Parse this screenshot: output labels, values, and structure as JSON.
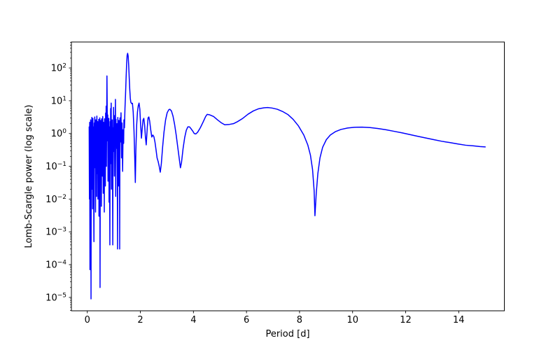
{
  "figure": {
    "background": "#ffffff",
    "spine_color": "#000000",
    "tick_color": "#000000",
    "text_color": "#000000"
  },
  "chart_data": {
    "type": "line",
    "title": "",
    "xlabel": "Period [d]",
    "ylabel": "Lomb-Scargle power (log scale)",
    "x_scale": "linear",
    "y_scale": "log",
    "xlim": [
      -0.6,
      15.72
    ],
    "ylim": [
      3.9e-06,
      620
    ],
    "x_ticks": [
      0,
      2,
      4,
      6,
      8,
      10,
      12,
      14
    ],
    "y_tick_exponents": [
      2,
      1,
      0,
      -1,
      -2,
      -3,
      -4,
      -5
    ],
    "grid": false,
    "legend": "none",
    "line_color": "#0000ff",
    "line_width": 1.5,
    "series": [
      {
        "name": "Lomb-Scargle power",
        "points": [
          [
            0.07,
            1.6
          ],
          [
            0.08,
            0.01
          ],
          [
            0.09,
            2.2
          ],
          [
            0.1,
            7e-05
          ],
          [
            0.11,
            1.8
          ],
          [
            0.12,
            0.06
          ],
          [
            0.125,
            2.6
          ],
          [
            0.13,
            0.4
          ],
          [
            0.14,
            9e-06
          ],
          [
            0.15,
            2.4
          ],
          [
            0.16,
            0.12
          ],
          [
            0.17,
            3.1
          ],
          [
            0.18,
            0.02
          ],
          [
            0.19,
            1.4
          ],
          [
            0.2,
            0.005
          ],
          [
            0.21,
            2.9
          ],
          [
            0.22,
            0.5
          ],
          [
            0.23,
            1.6
          ],
          [
            0.24,
            0.015
          ],
          [
            0.25,
            0.0005
          ],
          [
            0.26,
            2.1
          ],
          [
            0.27,
            0.09
          ],
          [
            0.28,
            3.2
          ],
          [
            0.29,
            0.7
          ],
          [
            0.3,
            1.1
          ],
          [
            0.31,
            0.004
          ],
          [
            0.32,
            2.6
          ],
          [
            0.33,
            0.25
          ],
          [
            0.34,
            1.5
          ],
          [
            0.35,
            0.012
          ],
          [
            0.36,
            3.4
          ],
          [
            0.37,
            0.8
          ],
          [
            0.38,
            0.06
          ],
          [
            0.39,
            2.3
          ],
          [
            0.4,
            0.01
          ],
          [
            0.41,
            1.9
          ],
          [
            0.42,
            0.35
          ],
          [
            0.43,
            2.7
          ],
          [
            0.44,
            0.003
          ],
          [
            0.45,
            1.2
          ],
          [
            0.46,
            0.12
          ],
          [
            0.47,
            3.0
          ],
          [
            0.48,
            2e-05
          ],
          [
            0.49,
            1.0
          ],
          [
            0.5,
            2.5
          ],
          [
            0.51,
            0.07
          ],
          [
            0.52,
            1.7
          ],
          [
            0.53,
            0.006
          ],
          [
            0.54,
            2.8
          ],
          [
            0.55,
            0.3
          ],
          [
            0.56,
            1.3
          ],
          [
            0.57,
            0.05
          ],
          [
            0.58,
            3.3
          ],
          [
            0.59,
            0.9
          ],
          [
            0.6,
            0.015
          ],
          [
            0.61,
            2.2
          ],
          [
            0.62,
            0.18
          ],
          [
            0.63,
            1.8
          ],
          [
            0.64,
            0.004
          ],
          [
            0.65,
            2.8
          ],
          [
            0.66,
            0.4
          ],
          [
            0.67,
            1.4
          ],
          [
            0.68,
            0.025
          ],
          [
            0.69,
            4.2
          ],
          [
            0.7,
            0.7
          ],
          [
            0.71,
            6.8
          ],
          [
            0.72,
            0.1
          ],
          [
            0.73,
            2.4
          ],
          [
            0.74,
            57
          ],
          [
            0.76,
            0.6
          ],
          [
            0.77,
            3.7
          ],
          [
            0.78,
            0.035
          ],
          [
            0.79,
            2.0
          ],
          [
            0.8,
            0.22
          ],
          [
            0.81,
            2.9
          ],
          [
            0.82,
            0.008
          ],
          [
            0.83,
            1.6
          ],
          [
            0.84,
            0.06
          ],
          [
            0.85,
            0.0004
          ],
          [
            0.86,
            2.3
          ],
          [
            0.87,
            0.45
          ],
          [
            0.88,
            5.8
          ],
          [
            0.89,
            0.12
          ],
          [
            0.9,
            8.5
          ],
          [
            0.91,
            0.02
          ],
          [
            0.92,
            1.9
          ],
          [
            0.93,
            0.65
          ],
          [
            0.94,
            2.6
          ],
          [
            0.95,
            0.09
          ],
          [
            0.96,
            0.0004
          ],
          [
            0.97,
            1.5
          ],
          [
            0.98,
            0.28
          ],
          [
            0.99,
            6.3
          ],
          [
            1.0,
            0.55
          ],
          [
            1.01,
            2.1
          ],
          [
            1.02,
            0.05
          ],
          [
            1.03,
            3.5
          ],
          [
            1.04,
            1.0
          ],
          [
            1.05,
            1.7
          ],
          [
            1.06,
            11
          ],
          [
            1.07,
            0.012
          ],
          [
            1.08,
            2.7
          ],
          [
            1.09,
            0.35
          ],
          [
            1.1,
            1.5
          ],
          [
            1.11,
            0.75
          ],
          [
            1.12,
            2.0
          ],
          [
            1.13,
            0.07
          ],
          [
            1.14,
            0.0003
          ],
          [
            1.15,
            3.1
          ],
          [
            1.16,
            0.45
          ],
          [
            1.17,
            1.4
          ],
          [
            1.18,
            0.025
          ],
          [
            1.19,
            2.5
          ],
          [
            1.2,
            0.13
          ],
          [
            1.21,
            1.9
          ],
          [
            1.22,
            0.0003
          ],
          [
            1.23,
            3.0
          ],
          [
            1.25,
            0.55
          ],
          [
            1.27,
            4.3
          ],
          [
            1.29,
            0.18
          ],
          [
            1.31,
            2.1
          ],
          [
            1.33,
            0.07
          ],
          [
            1.35,
            1.3
          ],
          [
            1.37,
            0.5
          ],
          [
            1.38,
            2.6
          ],
          [
            1.4,
            1.5
          ],
          [
            1.42,
            6
          ],
          [
            1.44,
            15
          ],
          [
            1.46,
            45
          ],
          [
            1.48,
            120
          ],
          [
            1.5,
            240
          ],
          [
            1.52,
            280
          ],
          [
            1.54,
            230
          ],
          [
            1.56,
            120
          ],
          [
            1.58,
            50
          ],
          [
            1.6,
            22
          ],
          [
            1.62,
            12
          ],
          [
            1.64,
            9
          ],
          [
            1.67,
            8.2
          ],
          [
            1.7,
            8.4
          ],
          [
            1.73,
            4.5
          ],
          [
            1.76,
            1.2
          ],
          [
            1.79,
            0.15
          ],
          [
            1.81,
            0.032
          ],
          [
            1.83,
            0.3
          ],
          [
            1.86,
            1.8
          ],
          [
            1.89,
            4.5
          ],
          [
            1.92,
            7.0
          ],
          [
            1.95,
            8.5
          ],
          [
            1.98,
            5.5
          ],
          [
            2.01,
            1.8
          ],
          [
            2.04,
            0.72
          ],
          [
            2.07,
            1.4
          ],
          [
            2.1,
            2.6
          ],
          [
            2.13,
            2.9
          ],
          [
            2.16,
            1.8
          ],
          [
            2.19,
            0.8
          ],
          [
            2.22,
            0.45
          ],
          [
            2.26,
            1.5
          ],
          [
            2.29,
            3.0
          ],
          [
            2.32,
            3.2
          ],
          [
            2.35,
            2.4
          ],
          [
            2.39,
            1.3
          ],
          [
            2.43,
            0.78
          ],
          [
            2.47,
            0.9
          ],
          [
            2.51,
            0.8
          ],
          [
            2.55,
            0.55
          ],
          [
            2.59,
            0.32
          ],
          [
            2.63,
            0.18
          ],
          [
            2.67,
            0.14
          ],
          [
            2.71,
            0.1
          ],
          [
            2.75,
            0.066
          ],
          [
            2.79,
            0.12
          ],
          [
            2.84,
            0.4
          ],
          [
            2.89,
            1.1
          ],
          [
            2.95,
            2.6
          ],
          [
            3.01,
            4.3
          ],
          [
            3.07,
            5.3
          ],
          [
            3.11,
            5.5
          ],
          [
            3.17,
            4.9
          ],
          [
            3.23,
            3.4
          ],
          [
            3.29,
            1.9
          ],
          [
            3.35,
            0.9
          ],
          [
            3.41,
            0.38
          ],
          [
            3.47,
            0.16
          ],
          [
            3.51,
            0.09
          ],
          [
            3.55,
            0.13
          ],
          [
            3.61,
            0.35
          ],
          [
            3.67,
            0.75
          ],
          [
            3.73,
            1.25
          ],
          [
            3.79,
            1.6
          ],
          [
            3.85,
            1.6
          ],
          [
            3.91,
            1.4
          ],
          [
            3.97,
            1.2
          ],
          [
            4.03,
            1.0
          ],
          [
            4.09,
            0.97
          ],
          [
            4.16,
            1.1
          ],
          [
            4.26,
            1.5
          ],
          [
            4.36,
            2.2
          ],
          [
            4.46,
            3.3
          ],
          [
            4.52,
            3.85
          ],
          [
            4.62,
            3.7
          ],
          [
            4.76,
            3.3
          ],
          [
            4.91,
            2.6
          ],
          [
            5.06,
            2.1
          ],
          [
            5.18,
            1.85
          ],
          [
            5.36,
            1.9
          ],
          [
            5.51,
            2.0
          ],
          [
            5.66,
            2.3
          ],
          [
            5.86,
            2.9
          ],
          [
            6.06,
            3.9
          ],
          [
            6.26,
            4.9
          ],
          [
            6.46,
            5.7
          ],
          [
            6.66,
            6.1
          ],
          [
            6.8,
            6.2
          ],
          [
            6.96,
            6.0
          ],
          [
            7.16,
            5.5
          ],
          [
            7.36,
            4.7
          ],
          [
            7.56,
            3.8
          ],
          [
            7.76,
            2.7
          ],
          [
            7.96,
            1.7
          ],
          [
            8.16,
            0.9
          ],
          [
            8.31,
            0.45
          ],
          [
            8.41,
            0.22
          ],
          [
            8.49,
            0.08
          ],
          [
            8.55,
            0.018
          ],
          [
            8.58,
            0.0031
          ],
          [
            8.63,
            0.015
          ],
          [
            8.69,
            0.06
          ],
          [
            8.77,
            0.18
          ],
          [
            8.87,
            0.38
          ],
          [
            9.01,
            0.65
          ],
          [
            9.16,
            0.9
          ],
          [
            9.36,
            1.15
          ],
          [
            9.56,
            1.33
          ],
          [
            9.81,
            1.47
          ],
          [
            10.06,
            1.55
          ],
          [
            10.36,
            1.57
          ],
          [
            10.66,
            1.52
          ],
          [
            10.96,
            1.42
          ],
          [
            11.26,
            1.3
          ],
          [
            11.56,
            1.17
          ],
          [
            11.86,
            1.05
          ],
          [
            12.16,
            0.93
          ],
          [
            12.46,
            0.82
          ],
          [
            12.76,
            0.73
          ],
          [
            13.06,
            0.65
          ],
          [
            13.36,
            0.58
          ],
          [
            13.66,
            0.53
          ],
          [
            13.96,
            0.48
          ],
          [
            14.26,
            0.44
          ],
          [
            14.56,
            0.42
          ],
          [
            14.8,
            0.4
          ],
          [
            15.0,
            0.39
          ]
        ]
      }
    ]
  }
}
